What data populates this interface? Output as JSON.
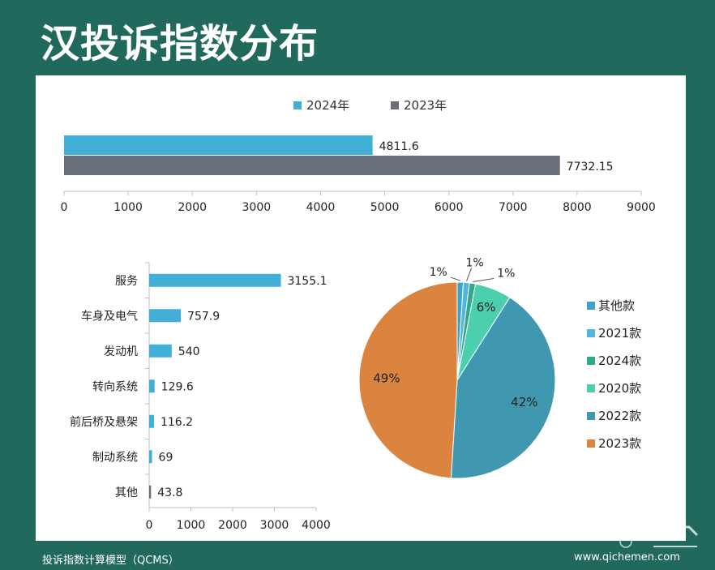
{
  "title": "汉投诉指数分布",
  "footer": {
    "left": "投诉指数计算模型（QCMS）",
    "right": "www.qichemen.com"
  },
  "colors": {
    "blue": "#41afd8",
    "gray": "#686e7a"
  },
  "chart_data": [
    {
      "type": "bar",
      "orientation": "horizontal",
      "series": [
        {
          "name": "2024年",
          "values": [
            4811.6
          ],
          "color": "#41afd8"
        },
        {
          "name": "2023年",
          "values": [
            7732.15
          ],
          "color": "#686e7a"
        }
      ],
      "xlim": [
        0,
        9000
      ],
      "xticks": [
        0,
        1000,
        2000,
        3000,
        4000,
        5000,
        6000,
        7000,
        8000,
        9000
      ],
      "legend": "top-center"
    },
    {
      "type": "bar",
      "orientation": "horizontal",
      "categories": [
        "服务",
        "车身及电气",
        "发动机",
        "转向系统",
        "前后桥及悬架",
        "制动系统",
        "其他"
      ],
      "values": [
        3155.1,
        757.9,
        540,
        129.6,
        116.2,
        69,
        43.8
      ],
      "colors": [
        "#41afd8",
        "#41afd8",
        "#41afd8",
        "#41afd8",
        "#41afd8",
        "#41afd8",
        "#686e7a"
      ],
      "xlim": [
        0,
        4000
      ],
      "xticks": [
        0,
        1000,
        2000,
        3000,
        4000
      ]
    },
    {
      "type": "pie",
      "labels": [
        "其他款",
        "2021款",
        "2024款",
        "2020款",
        "2022款",
        "2023款"
      ],
      "values": [
        1,
        1,
        1,
        6,
        42,
        49
      ],
      "display_labels": [
        "1%",
        "1%",
        "1%",
        "6%",
        "42%",
        "49%"
      ],
      "colors": [
        "#3fa3c9",
        "#52b5de",
        "#2fa98c",
        "#4ccfad",
        "#3f98b0",
        "#da8440"
      ],
      "legend": "right"
    }
  ]
}
